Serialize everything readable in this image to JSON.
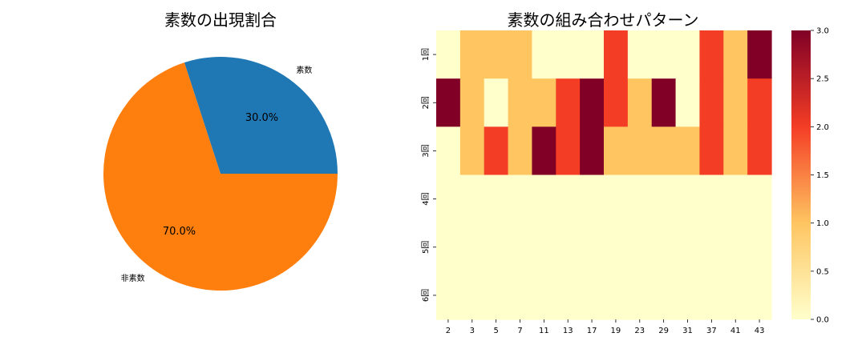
{
  "chart_data": [
    {
      "type": "pie",
      "title": "素数の出現割合",
      "labels": [
        "素数",
        "非素数"
      ],
      "values": [
        30.0,
        70.0
      ],
      "autopct": [
        "30.0%",
        "70.0%"
      ],
      "colors": [
        "#1f77b4",
        "#ff7f0e"
      ]
    },
    {
      "type": "heatmap",
      "title": "素数の組み合わせパターン",
      "x_labels": [
        "2",
        "3",
        "5",
        "7",
        "11",
        "13",
        "17",
        "19",
        "23",
        "29",
        "31",
        "37",
        "41",
        "43"
      ],
      "y_labels": [
        "1回",
        "2回",
        "3回",
        "4回",
        "5回",
        "6回"
      ],
      "values": [
        [
          0,
          1,
          1,
          1,
          0,
          0,
          0,
          2,
          0,
          0,
          0,
          2,
          1,
          3
        ],
        [
          3,
          1,
          0,
          1,
          1,
          2,
          3,
          2,
          1,
          3,
          0,
          2,
          1,
          2
        ],
        [
          0,
          1,
          2,
          1,
          3,
          2,
          3,
          1,
          1,
          1,
          1,
          2,
          1,
          2
        ],
        [
          0,
          0,
          0,
          0,
          0,
          0,
          0,
          0,
          0,
          0,
          0,
          0,
          0,
          0
        ],
        [
          0,
          0,
          0,
          0,
          0,
          0,
          0,
          0,
          0,
          0,
          0,
          0,
          0,
          0
        ],
        [
          0,
          0,
          0,
          0,
          0,
          0,
          0,
          0,
          0,
          0,
          0,
          0,
          0,
          0
        ]
      ],
      "colorbar": {
        "range": [
          0,
          3
        ],
        "ticks": [
          "0.0",
          "0.5",
          "1.0",
          "1.5",
          "2.0",
          "2.5",
          "3.0"
        ],
        "colormap": "YlOrRd",
        "colors": [
          "#ffffcc",
          "#fec561",
          "#f43d25",
          "#800026"
        ]
      }
    }
  ]
}
